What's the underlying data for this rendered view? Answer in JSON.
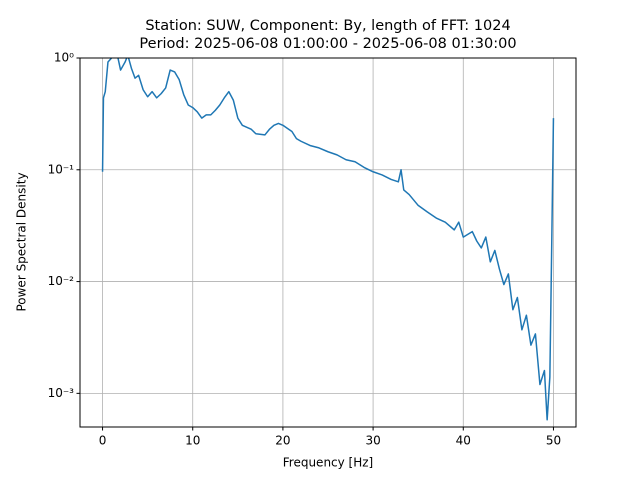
{
  "chart_data": {
    "type": "line",
    "title": "Station: SUW, Component: By, length of FFT: 1024",
    "subtitle": "Period: 2025-06-08 01:00:00 - 2025-06-08 01:30:00",
    "x_label": "Frequency [Hz]",
    "y_label": "Power Spectral Density",
    "yscale": "log",
    "grid": true,
    "xlim": [
      -2.5,
      52.5
    ],
    "ylim": [
      0.0005,
      1
    ],
    "xticks": [
      0,
      10,
      20,
      30,
      40,
      50
    ],
    "yticks": [
      {
        "value": 1,
        "label": "10⁰"
      },
      {
        "value": 0.1,
        "label": "10⁻¹"
      },
      {
        "value": 0.01,
        "label": "10⁻²"
      },
      {
        "value": 0.001,
        "label": "10⁻³"
      }
    ],
    "series": [
      {
        "color": "#1f77b4",
        "x": [
          0,
          0.1,
          0.3,
          0.6,
          1,
          1.5,
          2,
          2.5,
          2.8,
          3.2,
          3.6,
          4,
          4.5,
          5,
          5.5,
          6,
          6.5,
          7,
          7.5,
          8,
          8.5,
          9,
          9.5,
          10,
          10.5,
          11,
          11.5,
          12,
          12.5,
          13,
          13.5,
          14,
          14.5,
          15,
          15.5,
          16,
          16.5,
          17,
          18,
          18.5,
          19,
          19.5,
          20,
          21,
          21.5,
          22,
          23,
          24,
          25,
          26,
          27,
          28,
          29,
          30,
          31,
          32,
          32.8,
          33.1,
          33.4,
          34,
          35,
          36,
          37,
          38,
          39,
          39.5,
          40,
          41,
          41.5,
          42,
          42.5,
          43,
          43.5,
          44,
          44.5,
          45,
          45.5,
          46,
          46.5,
          47,
          47.5,
          48,
          48.5,
          49,
          49.3,
          49.6,
          49.8,
          50
        ],
        "values": [
          0.096,
          0.44,
          0.5,
          0.92,
          1.0,
          1.2,
          0.78,
          0.92,
          1.06,
          0.81,
          0.66,
          0.7,
          0.52,
          0.45,
          0.5,
          0.44,
          0.48,
          0.54,
          0.78,
          0.75,
          0.64,
          0.47,
          0.38,
          0.36,
          0.33,
          0.29,
          0.31,
          0.31,
          0.34,
          0.38,
          0.44,
          0.5,
          0.42,
          0.29,
          0.25,
          0.24,
          0.23,
          0.21,
          0.205,
          0.23,
          0.25,
          0.26,
          0.25,
          0.22,
          0.19,
          0.18,
          0.165,
          0.157,
          0.145,
          0.136,
          0.123,
          0.118,
          0.105,
          0.096,
          0.09,
          0.082,
          0.078,
          0.1,
          0.066,
          0.06,
          0.048,
          0.042,
          0.037,
          0.034,
          0.029,
          0.034,
          0.025,
          0.028,
          0.023,
          0.02,
          0.025,
          0.015,
          0.019,
          0.013,
          0.0094,
          0.0117,
          0.0056,
          0.0072,
          0.0037,
          0.005,
          0.0027,
          0.0034,
          0.0012,
          0.0016,
          0.00058,
          0.0014,
          0.019,
          0.29
        ]
      }
    ]
  }
}
